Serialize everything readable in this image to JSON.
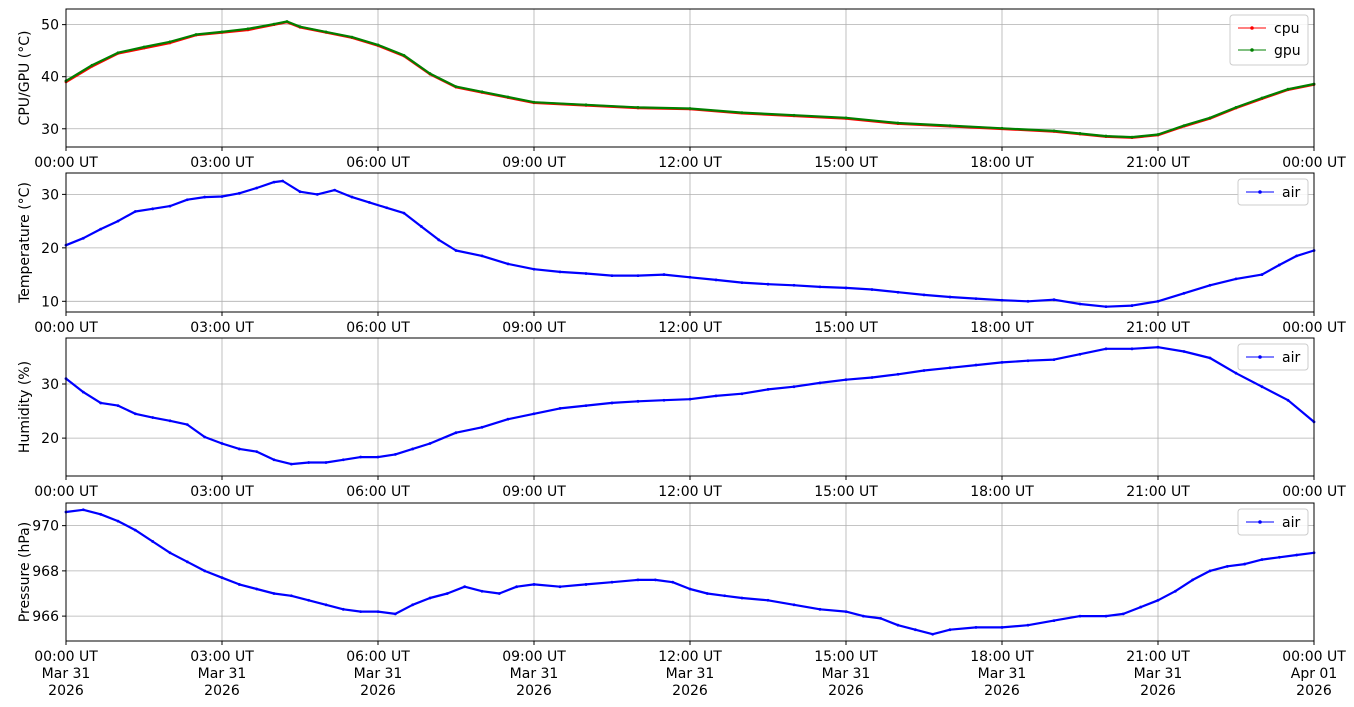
{
  "chart_data": [
    {
      "type": "line",
      "ylabel": "CPU/GPU (°C)",
      "xlim": [
        "2026-03-31T00:00:00Z",
        "2026-04-01T00:00:00Z"
      ],
      "ylim": [
        26.5,
        53
      ],
      "yticks": [
        30,
        40,
        50
      ],
      "xticks": [
        "00:00 UT",
        "03:00 UT",
        "06:00 UT",
        "09:00 UT",
        "12:00 UT",
        "15:00 UT",
        "18:00 UT",
        "21:00 UT",
        "00:00 UT"
      ],
      "grid": true,
      "legend": "top-right",
      "series": [
        {
          "name": "cpu",
          "color": "#ff0000",
          "x": [
            "00:00",
            "00:30",
            "01:00",
            "01:30",
            "02:00",
            "02:30",
            "03:00",
            "03:30",
            "04:00",
            "04:15",
            "04:30",
            "05:00",
            "05:30",
            "06:00",
            "06:30",
            "07:00",
            "07:30",
            "08:00",
            "08:30",
            "09:00",
            "10:00",
            "11:00",
            "12:00",
            "13:00",
            "14:00",
            "15:00",
            "16:00",
            "17:00",
            "18:00",
            "19:00",
            "19:30",
            "20:00",
            "20:30",
            "21:00",
            "21:30",
            "22:00",
            "22:30",
            "23:00",
            "23:30",
            "24:00"
          ],
          "values": [
            39.0,
            42.0,
            44.5,
            45.5,
            46.5,
            48.0,
            48.5,
            49.0,
            50.0,
            50.5,
            49.5,
            48.5,
            47.5,
            46.0,
            44.0,
            40.5,
            38.0,
            37.0,
            36.0,
            35.0,
            34.5,
            34.0,
            33.8,
            33.0,
            32.5,
            32.0,
            31.0,
            30.5,
            30.0,
            29.5,
            29.0,
            28.5,
            28.3,
            28.8,
            30.5,
            32.0,
            34.0,
            35.8,
            37.5,
            38.5
          ]
        },
        {
          "name": "gpu",
          "color": "#008000",
          "x": [
            "00:00",
            "00:30",
            "01:00",
            "01:30",
            "02:00",
            "02:30",
            "03:00",
            "03:30",
            "04:00",
            "04:15",
            "04:30",
            "05:00",
            "05:30",
            "06:00",
            "06:30",
            "07:00",
            "07:30",
            "08:00",
            "08:30",
            "09:00",
            "10:00",
            "11:00",
            "12:00",
            "13:00",
            "14:00",
            "15:00",
            "16:00",
            "17:00",
            "18:00",
            "19:00",
            "19:30",
            "20:00",
            "20:30",
            "21:00",
            "21:30",
            "22:00",
            "22:30",
            "23:00",
            "23:30",
            "24:00"
          ],
          "values": [
            39.2,
            42.2,
            44.6,
            45.7,
            46.7,
            48.1,
            48.6,
            49.2,
            50.1,
            50.6,
            49.6,
            48.6,
            47.6,
            46.1,
            44.1,
            40.6,
            38.1,
            37.1,
            36.1,
            35.1,
            34.6,
            34.1,
            33.9,
            33.1,
            32.6,
            32.1,
            31.1,
            30.6,
            30.1,
            29.6,
            29.1,
            28.6,
            28.4,
            28.9,
            30.6,
            32.1,
            34.1,
            35.9,
            37.6,
            38.6
          ]
        }
      ]
    },
    {
      "type": "line",
      "ylabel": "Temperature (°C)",
      "xlim": [
        "2026-03-31T00:00:00Z",
        "2026-04-01T00:00:00Z"
      ],
      "ylim": [
        8,
        34
      ],
      "yticks": [
        10,
        20,
        30
      ],
      "xticks": [
        "00:00 UT",
        "03:00 UT",
        "06:00 UT",
        "09:00 UT",
        "12:00 UT",
        "15:00 UT",
        "18:00 UT",
        "21:00 UT",
        "00:00 UT"
      ],
      "grid": true,
      "legend": "top-right",
      "series": [
        {
          "name": "air",
          "color": "#0000ff",
          "x": [
            "00:00",
            "00:20",
            "00:40",
            "01:00",
            "01:20",
            "01:40",
            "02:00",
            "02:20",
            "02:40",
            "03:00",
            "03:20",
            "03:40",
            "04:00",
            "04:10",
            "04:30",
            "04:50",
            "05:10",
            "05:30",
            "05:50",
            "06:10",
            "06:30",
            "06:50",
            "07:10",
            "07:30",
            "08:00",
            "08:30",
            "09:00",
            "09:30",
            "10:00",
            "10:30",
            "11:00",
            "11:30",
            "12:00",
            "12:30",
            "13:00",
            "13:30",
            "14:00",
            "14:30",
            "15:00",
            "15:30",
            "16:00",
            "16:30",
            "17:00",
            "17:30",
            "18:00",
            "18:30",
            "19:00",
            "19:30",
            "20:00",
            "20:30",
            "21:00",
            "21:30",
            "22:00",
            "22:30",
            "23:00",
            "23:20",
            "23:40",
            "24:00"
          ],
          "values": [
            20.5,
            21.8,
            23.5,
            25.0,
            26.8,
            27.3,
            27.8,
            29.0,
            29.5,
            29.6,
            30.2,
            31.2,
            32.3,
            32.5,
            30.5,
            30.0,
            30.8,
            29.5,
            28.5,
            27.5,
            26.5,
            24.0,
            21.5,
            19.5,
            18.5,
            17.0,
            16.0,
            15.5,
            15.2,
            14.8,
            14.8,
            15.0,
            14.5,
            14.0,
            13.5,
            13.2,
            13.0,
            12.7,
            12.5,
            12.2,
            11.7,
            11.2,
            10.8,
            10.5,
            10.2,
            10.0,
            10.3,
            9.5,
            9.0,
            9.2,
            10.0,
            11.5,
            13.0,
            14.2,
            15.0,
            16.8,
            18.5,
            19.5
          ]
        }
      ]
    },
    {
      "type": "line",
      "ylabel": "Humidity (%)",
      "xlim": [
        "2026-03-31T00:00:00Z",
        "2026-04-01T00:00:00Z"
      ],
      "ylim": [
        13,
        38.5
      ],
      "yticks": [
        20,
        30
      ],
      "xticks": [
        "00:00 UT",
        "03:00 UT",
        "06:00 UT",
        "09:00 UT",
        "12:00 UT",
        "15:00 UT",
        "18:00 UT",
        "21:00 UT",
        "00:00 UT"
      ],
      "grid": true,
      "legend": "top-right",
      "series": [
        {
          "name": "air",
          "color": "#0000ff",
          "x": [
            "00:00",
            "00:20",
            "00:40",
            "01:00",
            "01:20",
            "01:40",
            "02:00",
            "02:20",
            "02:40",
            "03:00",
            "03:20",
            "03:40",
            "04:00",
            "04:20",
            "04:40",
            "05:00",
            "05:20",
            "05:40",
            "06:00",
            "06:20",
            "06:40",
            "07:00",
            "07:30",
            "08:00",
            "08:30",
            "09:00",
            "09:30",
            "10:00",
            "10:30",
            "11:00",
            "11:30",
            "12:00",
            "12:30",
            "13:00",
            "13:30",
            "14:00",
            "14:30",
            "15:00",
            "15:30",
            "16:00",
            "16:30",
            "17:00",
            "17:30",
            "18:00",
            "18:30",
            "19:00",
            "19:30",
            "20:00",
            "20:30",
            "21:00",
            "21:30",
            "22:00",
            "22:30",
            "23:00",
            "23:30",
            "24:00"
          ],
          "values": [
            31.0,
            28.5,
            26.5,
            26.0,
            24.5,
            23.8,
            23.2,
            22.5,
            20.2,
            19.0,
            18.0,
            17.5,
            16.0,
            15.2,
            15.5,
            15.5,
            16.0,
            16.5,
            16.5,
            17.0,
            18.0,
            19.0,
            21.0,
            22.0,
            23.5,
            24.5,
            25.5,
            26.0,
            26.5,
            26.8,
            27.0,
            27.2,
            27.8,
            28.2,
            29.0,
            29.5,
            30.2,
            30.8,
            31.2,
            31.8,
            32.5,
            33.0,
            33.5,
            34.0,
            34.3,
            34.5,
            35.5,
            36.5,
            36.5,
            36.8,
            36.0,
            34.8,
            32.0,
            29.5,
            27.0,
            23.0
          ]
        }
      ]
    },
    {
      "type": "line",
      "ylabel": "Pressure (hPa)",
      "xlim": [
        "2026-03-31T00:00:00Z",
        "2026-04-01T00:00:00Z"
      ],
      "ylim": [
        964.9,
        971
      ],
      "yticks": [
        966,
        968,
        970
      ],
      "xticks": [
        "00:00 UT\nMar 31\n2026",
        "03:00 UT\nMar 31\n2026",
        "06:00 UT\nMar 31\n2026",
        "09:00 UT\nMar 31\n2026",
        "12:00 UT\nMar 31\n2026",
        "15:00 UT\nMar 31\n2026",
        "18:00 UT\nMar 31\n2026",
        "21:00 UT\nMar 31\n2026",
        "00:00 UT\nApr 01\n2026"
      ],
      "grid": true,
      "legend": "top-right",
      "series": [
        {
          "name": "air",
          "color": "#0000ff",
          "x": [
            "00:00",
            "00:20",
            "00:40",
            "01:00",
            "01:20",
            "01:40",
            "02:00",
            "02:20",
            "02:40",
            "03:00",
            "03:20",
            "03:40",
            "04:00",
            "04:20",
            "04:40",
            "05:00",
            "05:20",
            "05:40",
            "06:00",
            "06:20",
            "06:40",
            "07:00",
            "07:20",
            "07:40",
            "08:00",
            "08:20",
            "08:40",
            "09:00",
            "09:30",
            "10:00",
            "10:30",
            "11:00",
            "11:20",
            "11:40",
            "12:00",
            "12:20",
            "12:40",
            "13:00",
            "13:30",
            "14:00",
            "14:30",
            "15:00",
            "15:20",
            "15:40",
            "16:00",
            "16:20",
            "16:40",
            "17:00",
            "17:30",
            "18:00",
            "18:30",
            "19:00",
            "19:30",
            "20:00",
            "20:20",
            "20:40",
            "21:00",
            "21:20",
            "21:40",
            "22:00",
            "22:20",
            "22:40",
            "23:00",
            "23:20",
            "23:40",
            "24:00"
          ],
          "values": [
            970.6,
            970.7,
            970.5,
            970.2,
            969.8,
            969.3,
            968.8,
            968.4,
            968.0,
            967.7,
            967.4,
            967.2,
            967.0,
            966.9,
            966.7,
            966.5,
            966.3,
            966.2,
            966.2,
            966.1,
            966.5,
            966.8,
            967.0,
            967.3,
            967.1,
            967.0,
            967.3,
            967.4,
            967.3,
            967.4,
            967.5,
            967.6,
            967.6,
            967.5,
            967.2,
            967.0,
            966.9,
            966.8,
            966.7,
            966.5,
            966.3,
            966.2,
            966.0,
            965.9,
            965.6,
            965.4,
            965.2,
            965.4,
            965.5,
            965.5,
            965.6,
            965.8,
            966.0,
            966.0,
            966.1,
            966.4,
            966.7,
            967.1,
            967.6,
            968.0,
            968.2,
            968.3,
            968.5,
            968.6,
            968.7,
            968.8
          ]
        }
      ]
    }
  ]
}
